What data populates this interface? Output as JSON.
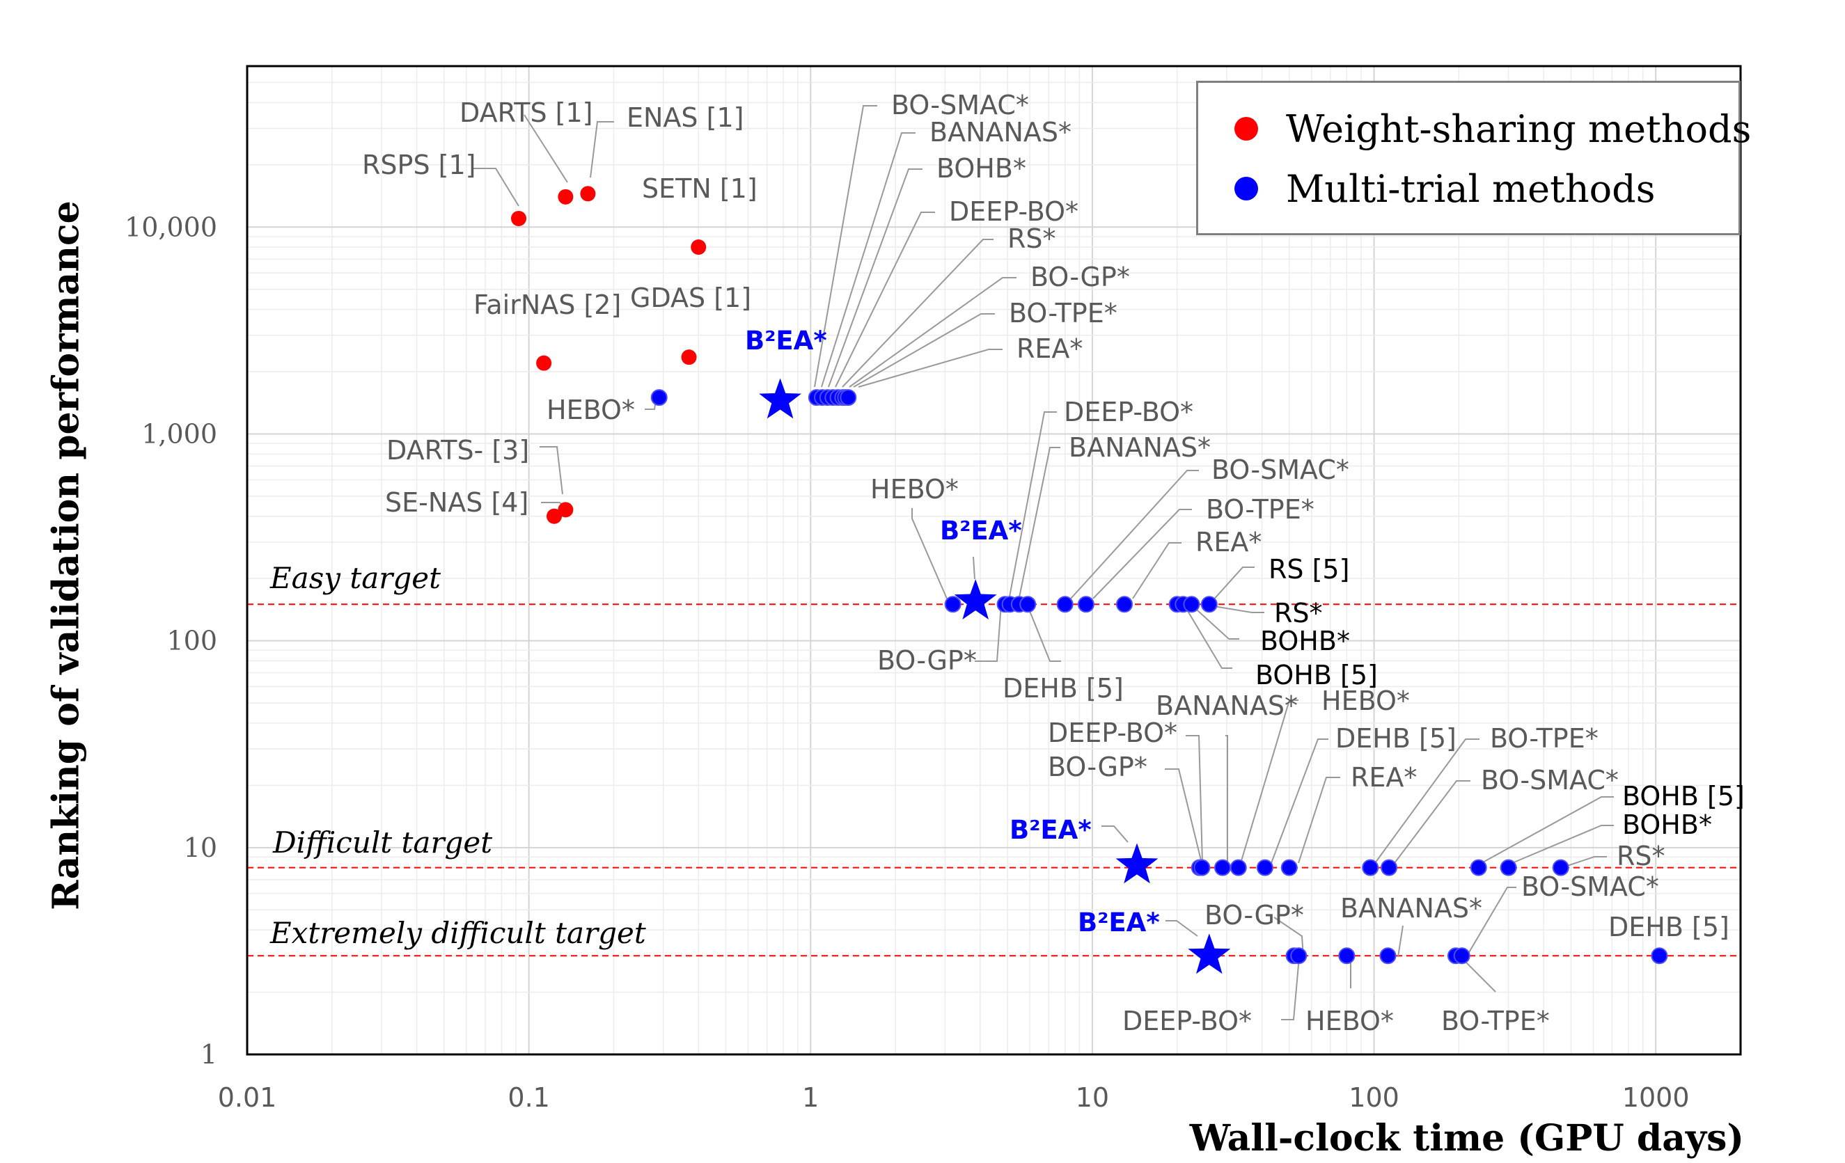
{
  "chart_data": {
    "type": "scatter",
    "xscale": "log",
    "yscale": "log",
    "xlim": [
      0.01,
      2000
    ],
    "ylim": [
      1,
      60000
    ],
    "xlabel": "Wall-clock time (GPU days)",
    "ylabel": "Ranking of validation performance",
    "x_ticks": [
      0.01,
      0.1,
      1,
      10,
      100,
      1000
    ],
    "x_tick_labels": [
      "0.01",
      "0.1",
      "1",
      "10",
      "100",
      "1000"
    ],
    "y_ticks": [
      1,
      10,
      100,
      1000,
      10000
    ],
    "y_tick_labels": [
      "1",
      "10",
      "100",
      "1,000",
      "10,000"
    ],
    "grid": true,
    "colors": {
      "weight_sharing": "#ff0000",
      "multi_trial": "#0000ff",
      "b2ea": "#0000ff",
      "target_line": "#ff0000",
      "leader": "#999999"
    },
    "legend": {
      "position": "top-right",
      "entries": [
        {
          "label": "Weight-sharing methods",
          "color": "#ff0000"
        },
        {
          "label": "Multi-trial methods",
          "color": "#0000ff"
        }
      ]
    },
    "targets": [
      {
        "label": "Easy target",
        "y": 150
      },
      {
        "label": "Difficult target",
        "y": 8
      },
      {
        "label": "Extremely difficult target",
        "y": 3
      }
    ],
    "weight_sharing": [
      {
        "label": "RSPS [1]",
        "x": 0.092,
        "y": 11000
      },
      {
        "label": "DARTS [1]",
        "x": 0.135,
        "y": 14000
      },
      {
        "label": "ENAS [1]",
        "x": 0.162,
        "y": 14500
      },
      {
        "label": "SETN [1]",
        "x": 0.4,
        "y": 8000
      },
      {
        "label": "FairNAS [2]",
        "x": 0.113,
        "y": 2200
      },
      {
        "label": "GDAS [1]",
        "x": 0.37,
        "y": 2350
      },
      {
        "label": "DARTS- [3]",
        "x": 0.135,
        "y": 430
      },
      {
        "label": "SE-NAS [4]",
        "x": 0.123,
        "y": 400
      }
    ],
    "b2ea": [
      {
        "label": "B²EA*",
        "x": 0.78,
        "y": 1450
      },
      {
        "label": "B²EA*",
        "x": 3.85,
        "y": 155
      },
      {
        "label": "B²EA*",
        "x": 14.4,
        "y": 8.2
      },
      {
        "label": "B²EA*",
        "x": 26,
        "y": 3
      }
    ],
    "multi_trial": [
      {
        "label": "HEBO*",
        "x": 0.29,
        "y": 1500
      },
      {
        "label": "BO-SMAC*",
        "x": 1.05,
        "y": 1500
      },
      {
        "label": "BANANAS*",
        "x": 1.1,
        "y": 1500
      },
      {
        "label": "BOHB*",
        "x": 1.15,
        "y": 1500
      },
      {
        "label": "DEEP-BO*",
        "x": 1.2,
        "y": 1500
      },
      {
        "label": "RS*",
        "x": 1.25,
        "y": 1500
      },
      {
        "label": "BO-GP*",
        "x": 1.3,
        "y": 1500
      },
      {
        "label": "BO-TPE*",
        "x": 1.33,
        "y": 1500
      },
      {
        "label": "REA*",
        "x": 1.36,
        "y": 1500
      },
      {
        "label": "HEBO*",
        "x": 3.2,
        "y": 150
      },
      {
        "label": "BO-GP*",
        "x": 4.9,
        "y": 150
      },
      {
        "label": "DEEP-BO*",
        "x": 5.1,
        "y": 150
      },
      {
        "label": "BANANAS*",
        "x": 5.5,
        "y": 150
      },
      {
        "label": "DEHB [5]",
        "x": 5.9,
        "y": 150
      },
      {
        "label": "BO-SMAC*",
        "x": 8,
        "y": 150
      },
      {
        "label": "BO-TPE*",
        "x": 9.5,
        "y": 150
      },
      {
        "label": "REA*",
        "x": 13,
        "y": 150
      },
      {
        "label": "BOHB [5]",
        "x": 20,
        "y": 150
      },
      {
        "label": "BOHB*",
        "x": 21,
        "y": 150
      },
      {
        "label": "RS*",
        "x": 22.5,
        "y": 150
      },
      {
        "label": "RS [5]",
        "x": 26,
        "y": 150
      },
      {
        "label": "BO-GP*",
        "x": 24,
        "y": 8
      },
      {
        "label": "DEEP-BO*",
        "x": 24.5,
        "y": 8
      },
      {
        "label": "BANANAS*",
        "x": 29,
        "y": 8
      },
      {
        "label": "HEBO*",
        "x": 33,
        "y": 8
      },
      {
        "label": "DEHB [5]",
        "x": 41,
        "y": 8
      },
      {
        "label": "REA*",
        "x": 50,
        "y": 8
      },
      {
        "label": "BO-TPE*",
        "x": 97,
        "y": 8
      },
      {
        "label": "BO-SMAC*",
        "x": 113,
        "y": 8
      },
      {
        "label": "BOHB [5]",
        "x": 235,
        "y": 8
      },
      {
        "label": "BOHB*",
        "x": 300,
        "y": 8
      },
      {
        "label": "RS*",
        "x": 460,
        "y": 8
      },
      {
        "label": "DEEP-BO*",
        "x": 52,
        "y": 3
      },
      {
        "label": "BO-GP*",
        "x": 54,
        "y": 3
      },
      {
        "label": "HEBO*",
        "x": 80,
        "y": 3
      },
      {
        "label": "BANANAS*",
        "x": 112,
        "y": 3
      },
      {
        "label": "BO-TPE*",
        "x": 195,
        "y": 3
      },
      {
        "label": "BO-SMAC*",
        "x": 205,
        "y": 3
      },
      {
        "label": "DEHB [5]",
        "x": 1030,
        "y": 3
      }
    ]
  }
}
